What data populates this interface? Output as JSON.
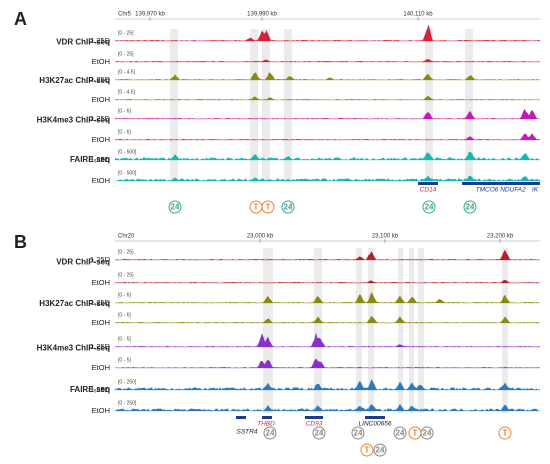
{
  "panels": [
    {
      "label": "A",
      "chromosome": "Chr5",
      "coordinates": [
        "139,970 kb",
        "139,990 kb",
        "140,110 kb"
      ],
      "tracks": [
        {
          "assay": "VDR ChIP-seq",
          "rows": [
            {
              "condition": "1,25D",
              "range": "[0 - 25]"
            },
            {
              "condition": "EtOH",
              "range": "[0 - 25]"
            }
          ]
        },
        {
          "assay": "H3K27ac ChIP-seq",
          "rows": [
            {
              "condition": "1,25D",
              "range": "[0 - 4.5]"
            },
            {
              "condition": "EtOH",
              "range": "[0 - 4.5]"
            }
          ]
        },
        {
          "assay": "H3K4me3 ChIP-seq",
          "rows": [
            {
              "condition": "1,25D",
              "range": "[0 - 6]"
            },
            {
              "condition": "EtOH",
              "range": "[0 - 6]"
            }
          ]
        },
        {
          "assay": "FAIRE-seq",
          "rows": [
            {
              "condition": "1,25D",
              "range": "[0 - 500]"
            },
            {
              "condition": "EtOH",
              "range": "[0 - 500]"
            }
          ]
        }
      ],
      "genes": [
        "CD14",
        "TMCO6",
        "NDUFA2",
        "IK"
      ],
      "markers": [
        "24",
        "T",
        "T",
        "24",
        "24",
        "24"
      ]
    },
    {
      "label": "B",
      "chromosome": "Chr20",
      "coordinates": [
        "23,000 kb",
        "23,100 kb",
        "23,200 kb"
      ],
      "tracks": [
        {
          "assay": "VDR ChIP-seq",
          "rows": [
            {
              "condition": "1,25D",
              "range": "[0 - 25]"
            },
            {
              "condition": "EtOH",
              "range": "[0 - 25]"
            }
          ]
        },
        {
          "assay": "H3K27ac ChIP-seq",
          "rows": [
            {
              "condition": "1,25D",
              "range": "[0 - 6]"
            },
            {
              "condition": "EtOH",
              "range": "[0 - 6]"
            }
          ]
        },
        {
          "assay": "H3K4me3 ChIP-seq",
          "rows": [
            {
              "condition": "1,25D",
              "range": "[0 - 5]"
            },
            {
              "condition": "EtOH",
              "range": "[0 - 5]"
            }
          ]
        },
        {
          "assay": "FAIRE-seq",
          "rows": [
            {
              "condition": "1,25D",
              "range": "[0 - 250]"
            },
            {
              "condition": "EtOH",
              "range": "[0 - 250]"
            }
          ]
        }
      ],
      "genes": [
        "THBD",
        "CD93",
        "SSTR4",
        "LINC00656"
      ],
      "markers": [
        "24",
        "24",
        "24",
        "24",
        "T",
        "24",
        "T",
        "T",
        "24"
      ]
    }
  ]
}
